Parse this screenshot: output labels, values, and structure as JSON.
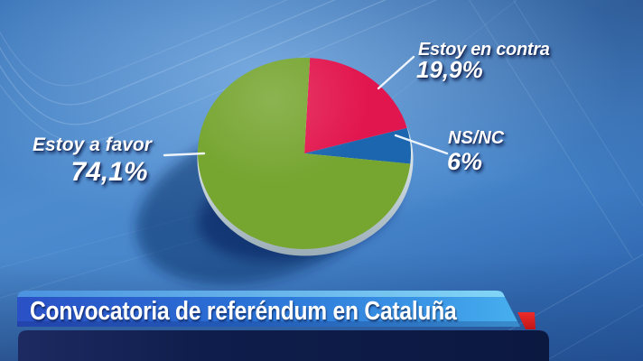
{
  "banner": {
    "title": "Convocatoria de referéndum en Cataluña",
    "accent_color": "#e02323"
  },
  "chart_data": {
    "type": "pie",
    "title": "Convocatoria de referéndum en Cataluña",
    "units": "%",
    "start_angle_deg": 3,
    "legend_position": "callouts",
    "slices": [
      {
        "label": "Estoy en contra",
        "value": 19.9,
        "value_label": "19,9%",
        "color": "#e2164e"
      },
      {
        "label": "NS/NC",
        "value": 6.0,
        "value_label": "6%",
        "color": "#1b66ae"
      },
      {
        "label": "Estoy a favor",
        "value": 74.1,
        "value_label": "74,1%",
        "color": "#76a530"
      }
    ],
    "style": {
      "effect": "3d-tilted",
      "rim_color": "#c3d0d6",
      "shadow_color": "#0a1e5a",
      "background": "blue-gradient-tv"
    }
  }
}
